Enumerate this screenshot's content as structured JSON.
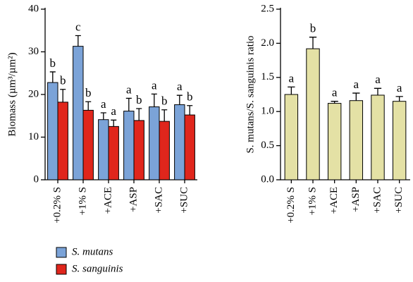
{
  "chart_data": [
    {
      "type": "bar",
      "ylabel": "Biomass (µm³/µm²)",
      "categories": [
        "+0.2% S",
        "+1% S",
        "+ACE",
        "+ASP",
        "+SAC",
        "+SUC"
      ],
      "series": [
        {
          "name": "S. mutans",
          "color": "#7ba3d8",
          "letter_color": "#7ba3d8",
          "values": [
            22.8,
            31.3,
            14.1,
            16.1,
            17.1,
            17.6
          ],
          "errors": [
            2.5,
            2.5,
            1.6,
            3.0,
            3.0,
            2.2
          ],
          "letters": [
            "b",
            "c",
            "a",
            "a",
            "a",
            "a"
          ]
        },
        {
          "name": "S. sanguinis",
          "color": "#e0261c",
          "letter_color": "#e0261c",
          "values": [
            18.2,
            16.3,
            12.5,
            13.9,
            13.7,
            15.2
          ],
          "errors": [
            3.0,
            2.0,
            1.5,
            2.8,
            2.7,
            2.2
          ],
          "letters": [
            "b",
            "b",
            "a",
            "b",
            "b",
            "b"
          ]
        }
      ],
      "ylim": [
        0,
        40
      ],
      "yticks": [
        0,
        10,
        20,
        30,
        40
      ],
      "legend": "bottom-left"
    },
    {
      "type": "bar",
      "ylabel": "S. mutans/S. sanguinis ratio",
      "categories": [
        "+0.2% S",
        "+1% S",
        "+ACE",
        "+ASP",
        "+SAC",
        "+SUC"
      ],
      "series": [
        {
          "color": "#e4e1a5",
          "letter_color": "#000000",
          "values": [
            1.25,
            1.92,
            1.12,
            1.16,
            1.24,
            1.15
          ],
          "errors": [
            0.11,
            0.17,
            0.03,
            0.11,
            0.1,
            0.07
          ],
          "letters": [
            "a",
            "b",
            "a",
            "a",
            "a",
            "a"
          ]
        }
      ],
      "ylim": [
        0,
        2.5
      ],
      "yticks": [
        {
          "value": 0,
          "label": "0.0"
        },
        0.5,
        {
          "value": 1,
          "label": "1.0"
        },
        1.5,
        {
          "value": 2,
          "label": "2.0"
        },
        2.5
      ]
    }
  ]
}
